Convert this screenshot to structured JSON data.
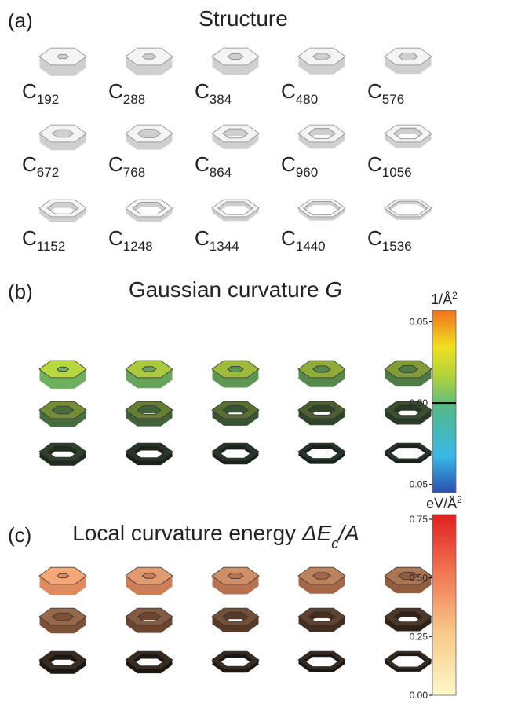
{
  "panels": [
    {
      "label": "(a)",
      "title": [
        {
          "text": "Structure"
        }
      ],
      "molecules": [
        {
          "base": "C",
          "sub": "192"
        },
        {
          "base": "C",
          "sub": "288"
        },
        {
          "base": "C",
          "sub": "384"
        },
        {
          "base": "C",
          "sub": "480"
        },
        {
          "base": "C",
          "sub": "576"
        },
        {
          "base": "C",
          "sub": "672"
        },
        {
          "base": "C",
          "sub": "768"
        },
        {
          "base": "C",
          "sub": "864"
        },
        {
          "base": "C",
          "sub": "960"
        },
        {
          "base": "C",
          "sub": "1056"
        },
        {
          "base": "C",
          "sub": "1152"
        },
        {
          "base": "C",
          "sub": "1248"
        },
        {
          "base": "C",
          "sub": "1344"
        },
        {
          "base": "C",
          "sub": "1440"
        },
        {
          "base": "C",
          "sub": "1536"
        }
      ]
    },
    {
      "label": "(b)",
      "title": [
        {
          "text": "Gaussian curvature "
        },
        {
          "text": "G",
          "italic": true
        }
      ],
      "colorbar": {
        "unit": "1/Å",
        "unit_sup": "2",
        "lim": [
          -0.055,
          0.057
        ],
        "ticks": [
          {
            "value": 0.05,
            "label": "0.05"
          },
          {
            "value": 0,
            "label": "0.00"
          },
          {
            "value": -0.05,
            "label": "-0.05"
          }
        ]
      }
    },
    {
      "label": "(c)",
      "title": [
        {
          "text": "Local curvature energy "
        },
        {
          "text": "ΔE",
          "italic": true
        },
        {
          "text": "c",
          "italic": true,
          "sub": true
        },
        {
          "text": "/A",
          "italic": true
        }
      ],
      "colorbar": {
        "unit": "eV/Å",
        "unit_sup": "2",
        "lim": [
          0,
          0.77
        ],
        "ticks": [
          {
            "value": 0.75,
            "label": "0.75"
          },
          {
            "value": 0.5,
            "label": "0.50"
          },
          {
            "value": 0.25,
            "label": "0.25"
          },
          {
            "value": 0,
            "label": "0.00"
          }
        ]
      }
    }
  ]
}
